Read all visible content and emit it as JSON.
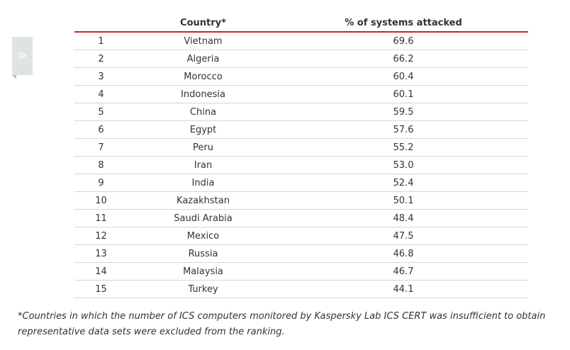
{
  "side_tab": {
    "glyph": "»",
    "icon": "double-chevron-right-icon"
  },
  "table": {
    "headers": {
      "rank": "",
      "country": "Country*",
      "value": "% of systems attacked"
    },
    "rows": [
      {
        "rank": "1",
        "country": "Vietnam",
        "value": "69.6"
      },
      {
        "rank": "2",
        "country": "Algeria",
        "value": "66.2"
      },
      {
        "rank": "3",
        "country": "Morocco",
        "value": "60.4"
      },
      {
        "rank": "4",
        "country": "Indonesia",
        "value": "60.1"
      },
      {
        "rank": "5",
        "country": "China",
        "value": "59.5"
      },
      {
        "rank": "6",
        "country": "Egypt",
        "value": "57.6"
      },
      {
        "rank": "7",
        "country": "Peru",
        "value": "55.2"
      },
      {
        "rank": "8",
        "country": "Iran",
        "value": "53.0"
      },
      {
        "rank": "9",
        "country": "India",
        "value": "52.4"
      },
      {
        "rank": "10",
        "country": "Kazakhstan",
        "value": "50.1"
      },
      {
        "rank": "11",
        "country": "Saudi Arabia",
        "value": "48.4"
      },
      {
        "rank": "12",
        "country": "Mexico",
        "value": "47.5"
      },
      {
        "rank": "13",
        "country": "Russia",
        "value": "46.8"
      },
      {
        "rank": "14",
        "country": "Malaysia",
        "value": "46.7"
      },
      {
        "rank": "15",
        "country": "Turkey",
        "value": "44.1"
      }
    ]
  },
  "footnote": "*Countries in which the number of ICS computers monitored by Kaspersky Lab ICS CERT was insufficient to obtain representative data sets were excluded from the ranking.",
  "colors": {
    "header_rule": "#d0202a",
    "row_rule": "#d6d6d6",
    "text": "#333333",
    "side_tab": "#dfe3e2"
  }
}
